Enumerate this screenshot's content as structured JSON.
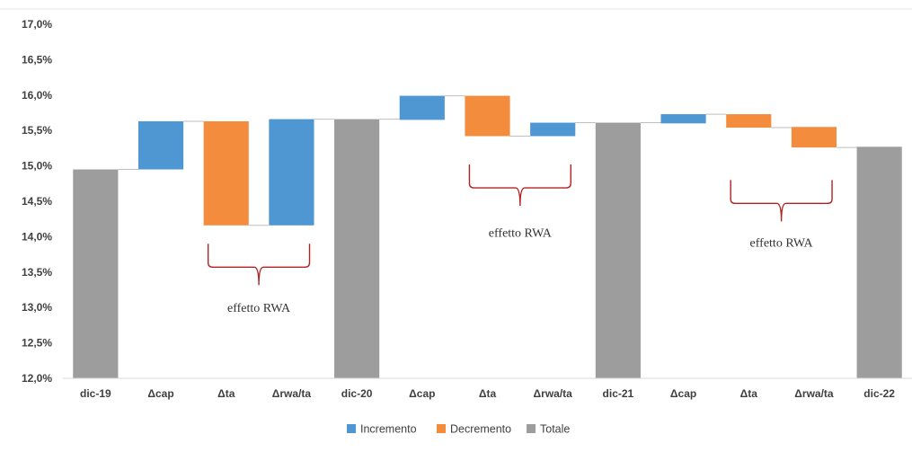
{
  "chart_data": {
    "type": "bar",
    "subtype": "waterfall",
    "title": "",
    "xlabel": "",
    "ylabel": "",
    "ylim": [
      12.0,
      17.0
    ],
    "ytick_step": 0.5,
    "y_tick_labels": [
      "12,0%",
      "12,5%",
      "13,0%",
      "13,5%",
      "14,0%",
      "14,5%",
      "15,0%",
      "15,5%",
      "16,0%",
      "16,5%",
      "17,0%"
    ],
    "grid": false,
    "legend_position": "bottom",
    "categories": [
      "dic-19",
      "Δcap",
      "Δta",
      "Δrwa/ta",
      "dic-20",
      "Δcap",
      "Δta",
      "Δrwa/ta",
      "dic-21",
      "Δcap",
      "Δta",
      "Δrwa/ta",
      "dic-22"
    ],
    "bars": [
      {
        "kind": "total",
        "start": 12.0,
        "end": 14.95
      },
      {
        "kind": "increase",
        "start": 14.95,
        "end": 15.63
      },
      {
        "kind": "decrease",
        "start": 15.63,
        "end": 14.16
      },
      {
        "kind": "increase",
        "start": 14.16,
        "end": 15.66
      },
      {
        "kind": "total",
        "start": 12.0,
        "end": 15.66
      },
      {
        "kind": "increase",
        "start": 15.65,
        "end": 15.99
      },
      {
        "kind": "decrease",
        "start": 15.99,
        "end": 15.42
      },
      {
        "kind": "increase",
        "start": 15.42,
        "end": 15.61
      },
      {
        "kind": "total",
        "start": 12.0,
        "end": 15.61
      },
      {
        "kind": "increase",
        "start": 15.6,
        "end": 15.73
      },
      {
        "kind": "decrease",
        "start": 15.73,
        "end": 15.54
      },
      {
        "kind": "decrease",
        "start": 15.55,
        "end": 15.26
      },
      {
        "kind": "total",
        "start": 12.0,
        "end": 15.27
      }
    ],
    "series": [
      {
        "name": "Incremento",
        "color": "#4f97d3"
      },
      {
        "name": "Decremento",
        "color": "#f48c3e"
      },
      {
        "name": "Totale",
        "color": "#9d9d9d"
      }
    ],
    "annotations": [
      {
        "text": "effetto RWA",
        "from_category": 2,
        "to_category": 3,
        "brace_y": 13.9,
        "label_y": 13.0
      },
      {
        "text": "effetto RWA",
        "from_category": 6,
        "to_category": 7,
        "brace_y": 15.02,
        "label_y": 14.06
      },
      {
        "text": "effetto RWA",
        "from_category": 10,
        "to_category": 11,
        "brace_y": 14.8,
        "label_y": 13.92
      }
    ],
    "colors": {
      "axis": "#d9d9d9",
      "connector": "#bfbfbf",
      "brace": "#b22222"
    }
  }
}
